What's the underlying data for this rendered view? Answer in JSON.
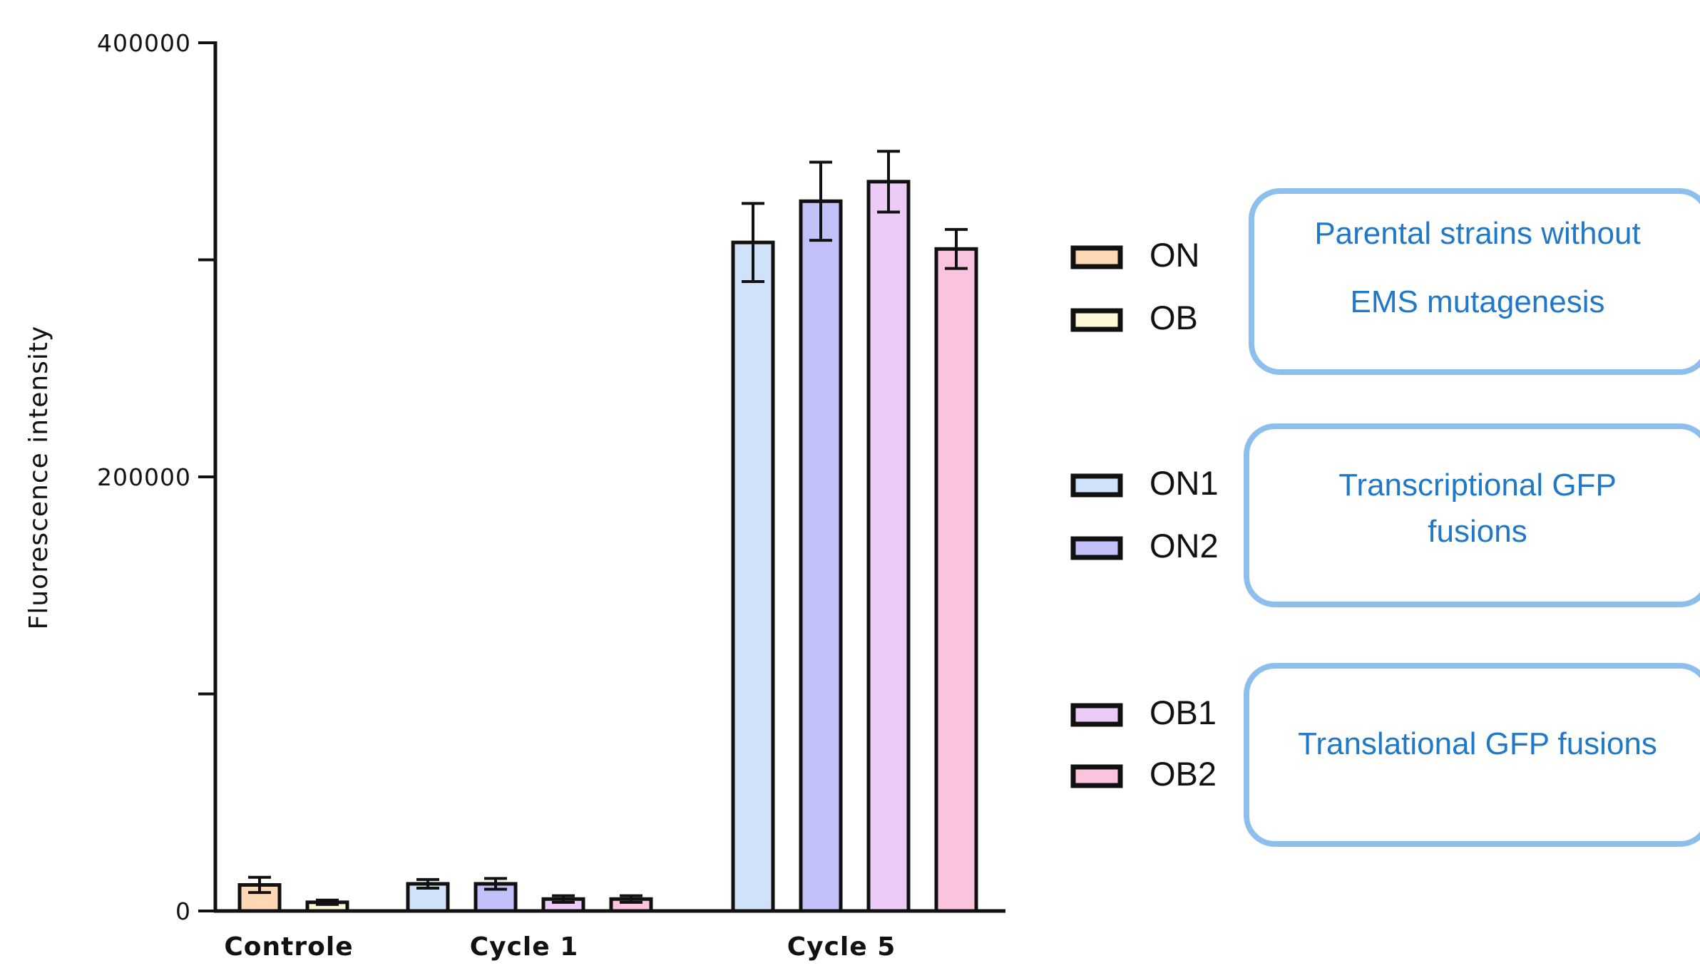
{
  "chart_data": {
    "type": "bar",
    "ylabel": "Fluorescence intensity",
    "xlabel": "",
    "ylim": [
      0,
      400000
    ],
    "y_tick_values": [
      0,
      100000,
      200000,
      300000,
      400000
    ],
    "y_tick_labels": [
      "0",
      "",
      "200000",
      "",
      "400000"
    ],
    "grid": false,
    "legend_position": "right",
    "groups": [
      {
        "label": "Controle",
        "bars": [
          {
            "series": "ON",
            "value": 12000,
            "error": 3500
          },
          {
            "series": "OB",
            "value": 4000,
            "error": 1000
          }
        ]
      },
      {
        "label": "Cycle 1",
        "bars": [
          {
            "series": "ON1",
            "value": 12500,
            "error": 2000
          },
          {
            "series": "ON2",
            "value": 12500,
            "error": 2500
          },
          {
            "series": "OB1",
            "value": 5500,
            "error": 1500
          },
          {
            "series": "OB2",
            "value": 5500,
            "error": 1500
          }
        ]
      },
      {
        "label": "Cycle 5",
        "bars": [
          {
            "series": "ON1",
            "value": 308000,
            "error": 18000
          },
          {
            "series": "ON2",
            "value": 327000,
            "error": 18000
          },
          {
            "series": "OB1",
            "value": 336000,
            "error": 14000
          },
          {
            "series": "OB2",
            "value": 305000,
            "error": 9000
          }
        ]
      }
    ],
    "series": [
      {
        "name": "ON",
        "color": "#fcd9b4"
      },
      {
        "name": "OB",
        "color": "#fff8d8"
      },
      {
        "name": "ON1",
        "color": "#cfe2fa"
      },
      {
        "name": "ON2",
        "color": "#c3c1f9"
      },
      {
        "name": "OB1",
        "color": "#ecccf6"
      },
      {
        "name": "OB2",
        "color": "#fbc4de"
      }
    ],
    "legend_groups": [
      {
        "items": [
          "ON",
          "OB"
        ],
        "annotation_lines": [
          "Parental strains without",
          "EMS mutagenesis"
        ]
      },
      {
        "items": [
          "ON1",
          "ON2"
        ],
        "annotation_lines": [
          "Transcriptional GFP",
          "fusions"
        ]
      },
      {
        "items": [
          "OB1",
          "OB2"
        ],
        "annotation_lines": [
          "Translational GFP fusions"
        ]
      }
    ]
  },
  "colors": {
    "annotation_border": "#8dbfec",
    "annotation_text": "#1f78c8",
    "axis": "#111111"
  }
}
